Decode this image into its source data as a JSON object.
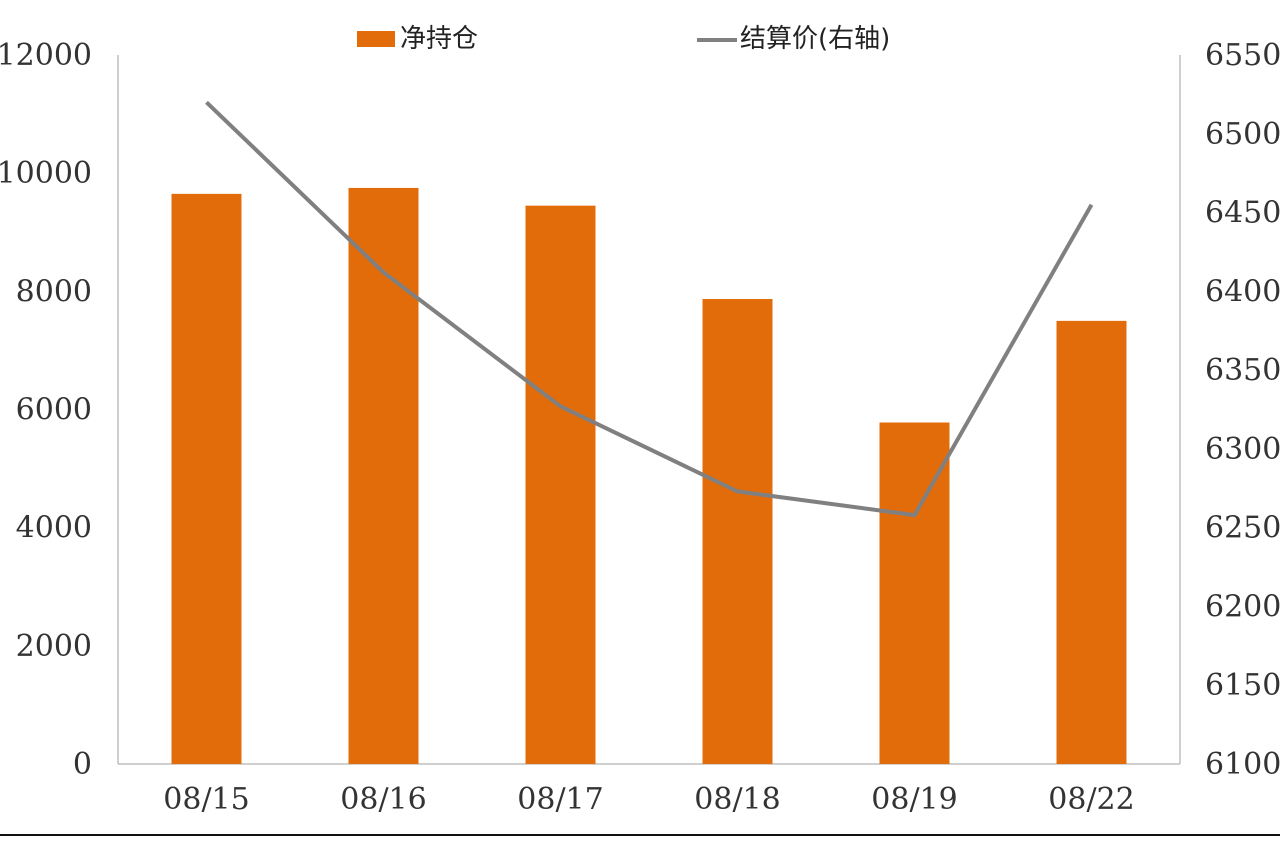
{
  "chart_data": {
    "type": "bar",
    "categories": [
      "08/15",
      "08/16",
      "08/17",
      "08/18",
      "08/19",
      "08/22"
    ],
    "series": [
      {
        "name": "净持仓",
        "type": "bar",
        "axis": "left",
        "color": "#E36C0A",
        "values": [
          9650,
          9750,
          9450,
          7870,
          5780,
          7500
        ]
      },
      {
        "name": "结算价(右轴)",
        "type": "line",
        "axis": "right",
        "color": "#808080",
        "values": [
          6520,
          6412,
          6327,
          6273,
          6258,
          6455
        ]
      }
    ],
    "y_left": {
      "min": 0,
      "max": 12000,
      "ticks": [
        "0",
        "2000",
        "4000",
        "6000",
        "8000",
        "10000",
        "12000"
      ]
    },
    "y_right": {
      "min": 6100,
      "max": 6550,
      "ticks": [
        "6100",
        "6150",
        "6200",
        "6250",
        "6300",
        "6350",
        "6400",
        "6450",
        "6500",
        "6550"
      ]
    },
    "grid": false,
    "legend_position": "top-center"
  }
}
